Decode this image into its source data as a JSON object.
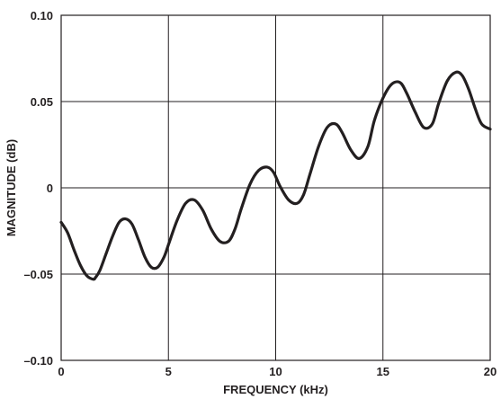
{
  "chart_data": {
    "type": "line",
    "xlabel": "FREQUENCY (kHz)",
    "ylabel": "MAGNITUDE (dB)",
    "xlim": [
      0,
      20
    ],
    "ylim": [
      -0.1,
      0.1
    ],
    "x_ticks": [
      0,
      5,
      10,
      15,
      20
    ],
    "x_tick_labels": [
      "0",
      "5",
      "10",
      "15",
      "20"
    ],
    "y_ticks": [
      -0.1,
      -0.05,
      0,
      0.05,
      0.1
    ],
    "y_tick_labels": [
      "–0.10",
      "–0.05",
      "0",
      "0.05",
      "0.10"
    ],
    "grid": true,
    "series": [
      {
        "color": "#231f20",
        "x": [
          0,
          0.3,
          0.6,
          0.9,
          1.2,
          1.5,
          1.6,
          1.8,
          2.1,
          2.4,
          2.7,
          3.0,
          3.3,
          3.6,
          3.9,
          4.2,
          4.5,
          4.8,
          5.0,
          5.4,
          5.8,
          6.2,
          6.6,
          7.0,
          7.4,
          7.8,
          8.1,
          8.4,
          8.8,
          9.2,
          9.6,
          9.9,
          10.2,
          10.6,
          11.0,
          11.3,
          11.6,
          12.0,
          12.4,
          12.8,
          13.1,
          13.5,
          13.9,
          14.3,
          14.6,
          15.0,
          15.4,
          15.8,
          16.1,
          16.5,
          16.9,
          17.3,
          17.6,
          18.0,
          18.4,
          18.7,
          19.0,
          19.3,
          19.6,
          20.0
        ],
        "y": [
          -0.02,
          -0.026,
          -0.036,
          -0.045,
          -0.051,
          -0.053,
          -0.052,
          -0.048,
          -0.038,
          -0.028,
          -0.02,
          -0.018,
          -0.021,
          -0.03,
          -0.04,
          -0.046,
          -0.046,
          -0.04,
          -0.033,
          -0.019,
          -0.009,
          -0.007,
          -0.013,
          -0.024,
          -0.031,
          -0.031,
          -0.024,
          -0.012,
          0.002,
          0.01,
          0.012,
          0.009,
          0.001,
          -0.007,
          -0.009,
          -0.004,
          0.008,
          0.024,
          0.035,
          0.037,
          0.032,
          0.022,
          0.017,
          0.024,
          0.039,
          0.052,
          0.06,
          0.061,
          0.055,
          0.044,
          0.035,
          0.037,
          0.049,
          0.062,
          0.067,
          0.065,
          0.057,
          0.046,
          0.037,
          0.034
        ]
      }
    ]
  }
}
